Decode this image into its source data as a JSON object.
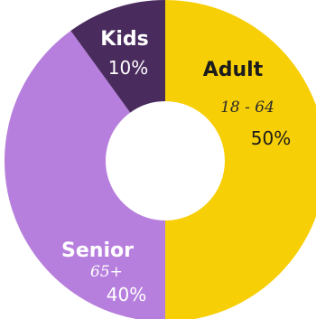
{
  "chart_data": {
    "type": "pie",
    "variant": "donut",
    "categories": [
      "Adult",
      "Senior",
      "Kids"
    ],
    "values": [
      50,
      40,
      10
    ],
    "value_labels": [
      "50%",
      "40%",
      "10%"
    ],
    "sublabels": [
      "18 - 64",
      "65+",
      ""
    ],
    "colors": [
      "#f7cf06",
      "#b77fdd",
      "#4a2b5e"
    ],
    "label_colors": {
      "Adult": {
        "name": "#1c1c1c",
        "sub": "#2a2a2a",
        "pct": "#1c1c1c"
      },
      "Senior": {
        "name": "#ffffff",
        "sub": "#ffffff",
        "pct": "#ffffff"
      },
      "Kids": {
        "name": "#ffffff",
        "sub": "#ffffff",
        "pct": "#ffffff"
      }
    },
    "title": "",
    "legend": "none"
  }
}
